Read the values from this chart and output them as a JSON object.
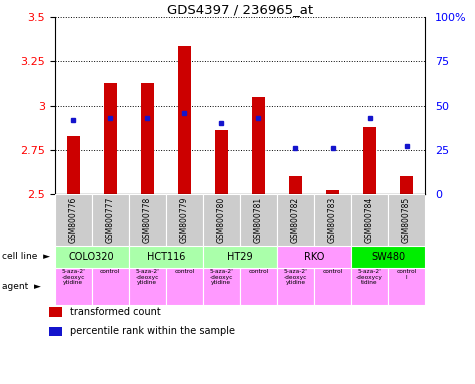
{
  "title": "GDS4397 / 236965_at",
  "samples": [
    "GSM800776",
    "GSM800777",
    "GSM800778",
    "GSM800779",
    "GSM800780",
    "GSM800781",
    "GSM800782",
    "GSM800783",
    "GSM800784",
    "GSM800785"
  ],
  "transformed_count": [
    2.83,
    3.13,
    3.13,
    3.34,
    2.86,
    3.05,
    2.6,
    2.52,
    2.88,
    2.6
  ],
  "percentile_rank": [
    42,
    43,
    43,
    46,
    40,
    43,
    26,
    26,
    43,
    27
  ],
  "ylim": [
    2.5,
    3.5
  ],
  "y_ticks": [
    2.5,
    2.75,
    3.0,
    3.25,
    3.5
  ],
  "y_ticklabels": [
    "2.5",
    "2.75",
    "3",
    "3.25",
    "3.5"
  ],
  "right_ylim": [
    0,
    100
  ],
  "right_yticks": [
    0,
    25,
    50,
    75,
    100
  ],
  "right_yticklabels": [
    "0",
    "25",
    "50",
    "75",
    "100%"
  ],
  "bar_color": "#cc0000",
  "dot_color": "#1414cc",
  "bar_width": 0.35,
  "cell_lines": [
    {
      "name": "COLO320",
      "start": 0,
      "end": 2,
      "color": "#aaffaa"
    },
    {
      "name": "HCT116",
      "start": 2,
      "end": 4,
      "color": "#aaffaa"
    },
    {
      "name": "HT29",
      "start": 4,
      "end": 6,
      "color": "#aaffaa"
    },
    {
      "name": "RKO",
      "start": 6,
      "end": 8,
      "color": "#ff99ff"
    },
    {
      "name": "SW480",
      "start": 8,
      "end": 10,
      "color": "#00ee00"
    }
  ],
  "agents": [
    {
      "name": "5-aza-2'\n-deoxyc\nytidine",
      "color": "#ff99ff"
    },
    {
      "name": "control",
      "color": "#ff99ff"
    },
    {
      "name": "5-aza-2'\n-deoxyc\nytidine",
      "color": "#ff99ff"
    },
    {
      "name": "control",
      "color": "#ff99ff"
    },
    {
      "name": "5-aza-2'\n-deoxyc\nytidine",
      "color": "#ff99ff"
    },
    {
      "name": "control",
      "color": "#ff99ff"
    },
    {
      "name": "5-aza-2'\n-deoxyc\nytidine",
      "color": "#ff99ff"
    },
    {
      "name": "control",
      "color": "#ff99ff"
    },
    {
      "name": "5-aza-2'\n-deoxycy\ntidine",
      "color": "#ff99ff"
    },
    {
      "name": "control\nl",
      "color": "#ff99ff"
    }
  ],
  "sample_bg": "#cccccc",
  "legend_items": [
    {
      "label": "transformed count",
      "color": "#cc0000"
    },
    {
      "label": "percentile rank within the sample",
      "color": "#1414cc"
    }
  ]
}
